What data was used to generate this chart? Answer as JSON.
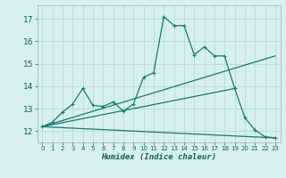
{
  "xlabel": "Humidex (Indice chaleur)",
  "bg_color": "#d6f0ef",
  "grid_color": "#b8dada",
  "line_color": "#1a7a6e",
  "xlim": [
    -0.5,
    23.5
  ],
  "ylim": [
    11.5,
    17.6
  ],
  "yticks": [
    12,
    13,
    14,
    15,
    16,
    17
  ],
  "xticks": [
    0,
    1,
    2,
    3,
    4,
    5,
    6,
    7,
    8,
    9,
    10,
    11,
    12,
    13,
    14,
    15,
    16,
    17,
    18,
    19,
    20,
    21,
    22,
    23
  ],
  "series1_x": [
    0,
    1,
    2,
    3,
    4,
    5,
    6,
    7,
    8,
    9,
    10,
    11,
    12,
    13,
    14,
    15,
    16,
    17,
    18,
    19,
    20,
    21,
    22,
    23
  ],
  "series1_y": [
    12.2,
    12.4,
    12.85,
    13.2,
    13.9,
    13.15,
    13.1,
    13.3,
    12.9,
    13.2,
    14.4,
    14.6,
    17.1,
    16.7,
    16.7,
    15.4,
    15.75,
    15.35,
    15.35,
    13.9,
    12.6,
    12.05,
    11.75,
    11.7
  ],
  "series2_x": [
    0,
    23
  ],
  "series2_y": [
    12.2,
    15.35
  ],
  "series3_x": [
    0,
    19
  ],
  "series3_y": [
    12.2,
    13.9
  ],
  "series4_x": [
    0,
    23
  ],
  "series4_y": [
    12.2,
    11.7
  ]
}
